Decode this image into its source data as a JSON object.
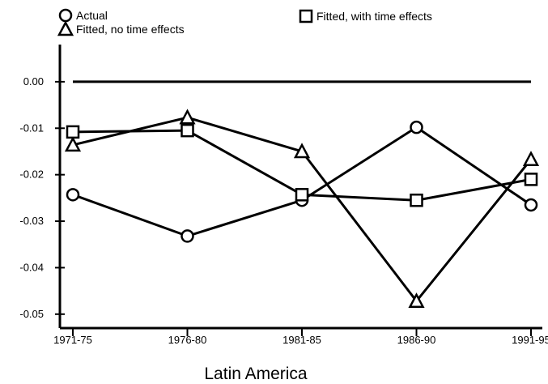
{
  "chart_data": {
    "type": "line",
    "categories": [
      "1971-75",
      "1976-80",
      "1981-85",
      "1986-90",
      "1991-95"
    ],
    "ylim": [
      -0.053,
      0.008
    ],
    "yticks": [
      0.0,
      -0.01,
      -0.02,
      -0.03,
      -0.04,
      -0.05
    ],
    "ytick_labels": [
      "0.00",
      "-0.01",
      "-0.02",
      "-0.03",
      "-0.04",
      "-0.05"
    ],
    "reference_line": 0.0,
    "xlabel": "Latin America",
    "ylabel": "",
    "grid": false,
    "legend_position": "top",
    "series": [
      {
        "name": "Actual",
        "marker": "circle",
        "values": [
          -0.0243,
          -0.0332,
          -0.0255,
          -0.0098,
          -0.0265
        ]
      },
      {
        "name": "Fitted, no time effects",
        "marker": "triangle",
        "values": [
          -0.0136,
          -0.0077,
          -0.015,
          -0.0472,
          -0.0167
        ]
      },
      {
        "name": "Fitted, with time effects",
        "marker": "square",
        "values": [
          -0.0108,
          -0.0105,
          -0.0243,
          -0.0255,
          -0.021
        ]
      }
    ]
  }
}
